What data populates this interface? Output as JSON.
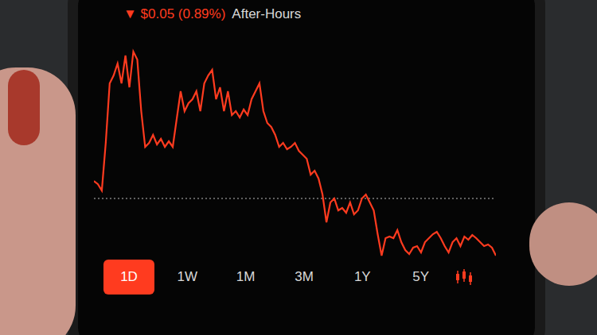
{
  "chart_data": {
    "type": "line",
    "title": "▼ $0.05 (0.89%)",
    "subtitle": "After-Hours",
    "values": [
      102,
      98,
      90,
      150,
      225,
      235,
      250,
      225,
      260,
      220,
      265,
      255,
      190,
      145,
      150,
      160,
      148,
      155,
      145,
      152,
      145,
      180,
      215,
      190,
      200,
      205,
      215,
      190,
      225,
      235,
      242,
      205,
      220,
      190,
      215,
      185,
      190,
      182,
      192,
      185,
      205,
      215,
      225,
      190,
      175,
      170,
      160,
      145,
      150,
      142,
      145,
      150,
      140,
      135,
      130,
      110,
      115,
      105,
      85,
      50,
      75,
      80,
      65,
      68,
      62,
      75,
      60,
      65,
      80,
      85,
      75,
      65,
      35,
      8,
      30,
      32,
      30,
      40,
      25,
      15,
      10,
      18,
      20,
      12,
      25,
      30,
      35,
      38,
      30,
      20,
      12,
      25,
      30,
      20,
      32,
      28,
      34,
      30,
      25,
      20,
      22,
      18,
      8
    ],
    "previous_close": 80,
    "color": "#ff3b1f",
    "ylim": [
      0,
      270
    ],
    "tick_labels": false,
    "grid": false,
    "buttons": [
      "1D",
      "1W",
      "1M",
      "3M",
      "1Y",
      "5Y"
    ],
    "selected_button": "1D"
  }
}
